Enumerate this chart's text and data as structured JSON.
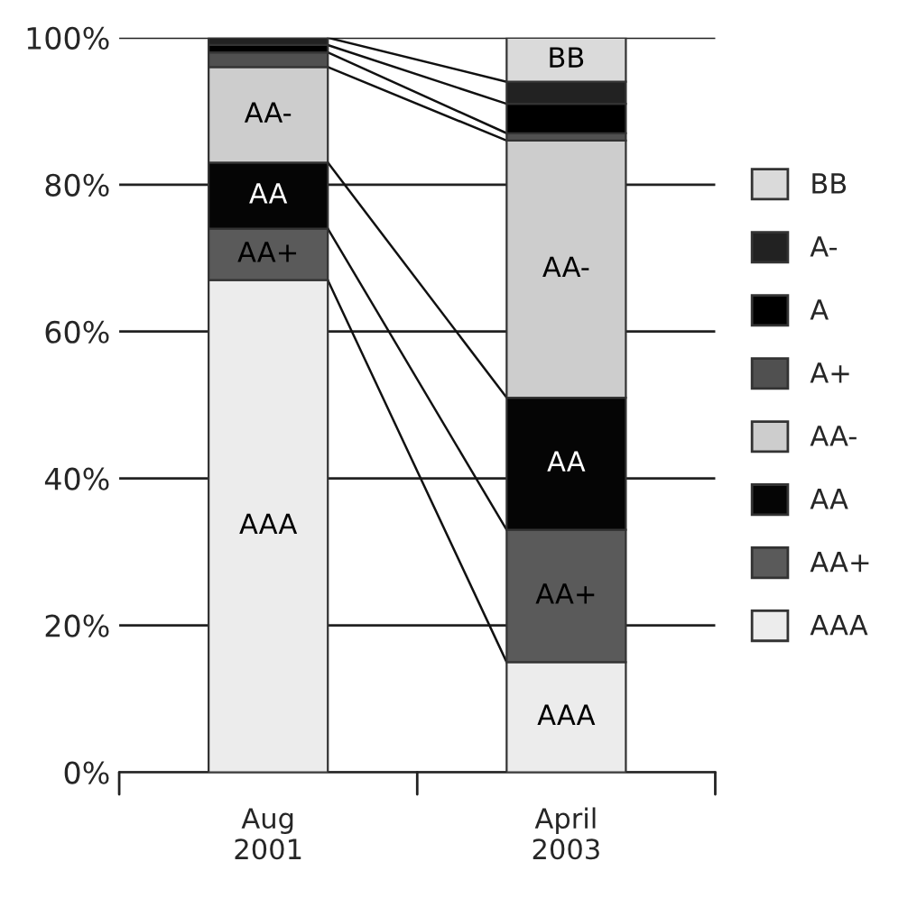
{
  "chart_data": {
    "type": "bar",
    "stacked": true,
    "categories": [
      "Aug\n2001",
      "April\n2003"
    ],
    "series": [
      {
        "name": "AAA",
        "color": "#ececec",
        "values": [
          67,
          15
        ]
      },
      {
        "name": "AA+",
        "color": "#5a5a5a",
        "values": [
          7,
          18
        ]
      },
      {
        "name": "AA",
        "color": "#050505",
        "values": [
          9,
          18
        ]
      },
      {
        "name": "AA-",
        "color": "#cdcdcd",
        "values": [
          13,
          35
        ]
      },
      {
        "name": "A+",
        "color": "#505050",
        "values": [
          2,
          1
        ]
      },
      {
        "name": "A",
        "color": "#000000",
        "values": [
          1,
          4
        ]
      },
      {
        "name": "A-",
        "color": "#222222",
        "values": [
          1,
          3
        ]
      },
      {
        "name": "BB",
        "color": "#dadada",
        "values": [
          0,
          6
        ]
      }
    ],
    "ylim": [
      0,
      100
    ],
    "yticks": [
      {
        "value": 0,
        "label": "0%"
      },
      {
        "value": 20,
        "label": "20%"
      },
      {
        "value": 40,
        "label": "40%"
      },
      {
        "value": 60,
        "label": "60%"
      },
      {
        "value": 80,
        "label": "80%"
      },
      {
        "value": 100,
        "label": "100%"
      }
    ],
    "grid": "y",
    "legend": "right"
  }
}
